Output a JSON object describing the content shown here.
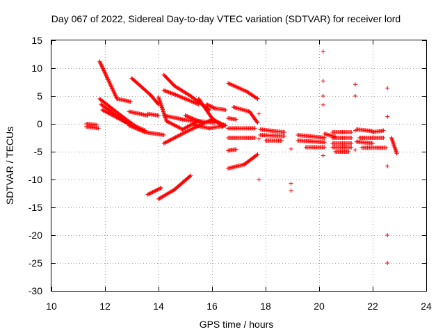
{
  "chart_data": {
    "type": "scatter",
    "title": "Day 067 of 2022, Sidereal Day-to-day VTEC variation (SDTVAR) for receiver lord",
    "xlabel": "GPS time / hours",
    "ylabel": "SDTVAR / TECUs",
    "xlim": [
      10,
      24
    ],
    "ylim": [
      -30,
      15
    ],
    "xticks": [
      10,
      12,
      14,
      16,
      18,
      20,
      22,
      24
    ],
    "yticks": [
      -30,
      -25,
      -20,
      -15,
      -10,
      -5,
      0,
      5,
      10,
      15
    ],
    "grid": true,
    "marker": "+",
    "color": "#ff0000",
    "segments": [
      {
        "x": [
          11.3,
          11.7
        ],
        "y": [
          0.0,
          -0.2
        ]
      },
      {
        "x": [
          11.3,
          11.75
        ],
        "y": [
          -0.5,
          -0.8
        ]
      },
      {
        "x": [
          11.8,
          12.45
        ],
        "y": [
          11.2,
          4.5
        ]
      },
      {
        "x": [
          12.45,
          12.95
        ],
        "y": [
          4.5,
          4.0
        ]
      },
      {
        "x": [
          11.8,
          12.6
        ],
        "y": [
          4.5,
          1.5
        ]
      },
      {
        "x": [
          12.6,
          13.3
        ],
        "y": [
          1.5,
          -1.0
        ]
      },
      {
        "x": [
          11.85,
          12.7
        ],
        "y": [
          3.5,
          0.5
        ]
      },
      {
        "x": [
          12.7,
          13.5
        ],
        "y": [
          0.5,
          -1.2
        ]
      },
      {
        "x": [
          11.9,
          12.5
        ],
        "y": [
          2.5,
          1.0
        ]
      },
      {
        "x": [
          12.5,
          12.9
        ],
        "y": [
          1.0,
          0.0
        ]
      },
      {
        "x": [
          12.9,
          13.6
        ],
        "y": [
          2.2,
          1.5
        ]
      },
      {
        "x": [
          13.6,
          14.0
        ],
        "y": [
          1.8,
          1.5
        ]
      },
      {
        "x": [
          13.0,
          13.7
        ],
        "y": [
          8.2,
          5.2
        ]
      },
      {
        "x": [
          13.7,
          14.0
        ],
        "y": [
          5.2,
          3.5
        ]
      },
      {
        "x": [
          12.9,
          13.5
        ],
        "y": [
          -0.3,
          -1.5
        ]
      },
      {
        "x": [
          13.5,
          14.2
        ],
        "y": [
          -1.5,
          -2.0
        ]
      },
      {
        "x": [
          14.0,
          14.3
        ],
        "y": [
          4.8,
          0.5
        ]
      },
      {
        "x": [
          14.3,
          14.9
        ],
        "y": [
          0.5,
          -1.0
        ]
      },
      {
        "x": [
          14.9,
          15.4
        ],
        "y": [
          -1.0,
          0.3
        ]
      },
      {
        "x": [
          14.2,
          14.6
        ],
        "y": [
          8.8,
          6.8
        ]
      },
      {
        "x": [
          14.6,
          15.2
        ],
        "y": [
          6.8,
          5.0
        ]
      },
      {
        "x": [
          15.2,
          15.9
        ],
        "y": [
          5.0,
          2.5
        ]
      },
      {
        "x": [
          14.2,
          14.6
        ],
        "y": [
          6.0,
          5.3
        ]
      },
      {
        "x": [
          14.6,
          15.5
        ],
        "y": [
          5.3,
          3.5
        ]
      },
      {
        "x": [
          14.2,
          14.9
        ],
        "y": [
          1.5,
          0.8
        ]
      },
      {
        "x": [
          14.9,
          15.6
        ],
        "y": [
          0.8,
          0.3
        ]
      },
      {
        "x": [
          14.2,
          15.0
        ],
        "y": [
          -3.5,
          -1.5
        ]
      },
      {
        "x": [
          15.0,
          16.0
        ],
        "y": [
          -1.5,
          0.8
        ]
      },
      {
        "x": [
          16.0,
          16.5
        ],
        "y": [
          0.8,
          -0.3
        ]
      },
      {
        "x": [
          15.0,
          15.5
        ],
        "y": [
          1.5,
          0.5
        ]
      },
      {
        "x": [
          15.5,
          16.1
        ],
        "y": [
          0.5,
          0.2
        ]
      },
      {
        "x": [
          15.5,
          16.0
        ],
        "y": [
          4.5,
          1.0
        ]
      },
      {
        "x": [
          16.0,
          16.4
        ],
        "y": [
          1.0,
          -0.5
        ]
      },
      {
        "x": [
          15.8,
          16.1
        ],
        "y": [
          3.5,
          2.8
        ]
      },
      {
        "x": [
          16.1,
          16.5
        ],
        "y": [
          2.8,
          2.5
        ]
      },
      {
        "x": [
          15.3,
          15.9
        ],
        "y": [
          -0.2,
          -0.8
        ]
      },
      {
        "x": [
          15.9,
          16.5
        ],
        "y": [
          -0.8,
          -0.3
        ]
      },
      {
        "x": [
          14.0,
          14.6
        ],
        "y": [
          -13.5,
          -11.8
        ]
      },
      {
        "x": [
          14.6,
          15.2
        ],
        "y": [
          -11.8,
          -9.3
        ]
      },
      {
        "x": [
          13.6,
          14.1
        ],
        "y": [
          -12.7,
          -11.5
        ]
      },
      {
        "x": [
          16.6,
          17.3
        ],
        "y": [
          7.3,
          5.8
        ]
      },
      {
        "x": [
          17.3,
          17.7
        ],
        "y": [
          5.8,
          4.5
        ]
      },
      {
        "x": [
          16.8,
          17.4
        ],
        "y": [
          3.0,
          2.2
        ]
      },
      {
        "x": [
          17.4,
          17.7
        ],
        "y": [
          2.2,
          0.2
        ]
      },
      {
        "x": [
          16.6,
          17.6
        ],
        "y": [
          -0.8,
          -0.8
        ]
      },
      {
        "x": [
          16.6,
          17.6
        ],
        "y": [
          -2.5,
          -2.5
        ]
      },
      {
        "x": [
          16.6,
          16.9
        ],
        "y": [
          -4.8,
          -4.6
        ]
      },
      {
        "x": [
          16.6,
          17.2
        ],
        "y": [
          -8.0,
          -7.3
        ]
      },
      {
        "x": [
          17.2,
          17.7
        ],
        "y": [
          -7.3,
          -5.5
        ]
      },
      {
        "x": [
          16.6,
          16.9
        ],
        "y": [
          1.0,
          0.8
        ]
      },
      {
        "x": [
          17.8,
          18.7
        ],
        "y": [
          -1.0,
          -1.5
        ]
      },
      {
        "x": [
          17.8,
          18.7
        ],
        "y": [
          -2.0,
          -2.2
        ]
      },
      {
        "x": [
          18.0,
          18.6
        ],
        "y": [
          -3.0,
          -3.0
        ]
      },
      {
        "x": [
          19.2,
          20.2
        ],
        "y": [
          -2.0,
          -2.5
        ]
      },
      {
        "x": [
          19.2,
          20.2
        ],
        "y": [
          -3.0,
          -3.3
        ]
      },
      {
        "x": [
          19.5,
          20.2
        ],
        "y": [
          -4.2,
          -4.2
        ]
      },
      {
        "x": [
          20.2,
          20.6
        ],
        "y": [
          -1.8,
          -2.3
        ]
      },
      {
        "x": [
          20.5,
          21.2
        ],
        "y": [
          -1.5,
          -1.5
        ]
      },
      {
        "x": [
          20.5,
          21.2
        ],
        "y": [
          -2.5,
          -2.5
        ]
      },
      {
        "x": [
          20.5,
          21.2
        ],
        "y": [
          -3.5,
          -3.5
        ]
      },
      {
        "x": [
          20.5,
          21.2
        ],
        "y": [
          -4.2,
          -4.2
        ]
      },
      {
        "x": [
          20.6,
          21.1
        ],
        "y": [
          -5.0,
          -5.0
        ]
      },
      {
        "x": [
          21.4,
          22.0
        ],
        "y": [
          -1.0,
          -1.3
        ]
      },
      {
        "x": [
          21.4,
          22.0
        ],
        "y": [
          -3.2,
          -3.5
        ]
      },
      {
        "x": [
          21.5,
          22.4
        ],
        "y": [
          -2.5,
          -2.5
        ]
      },
      {
        "x": [
          21.6,
          22.5
        ],
        "y": [
          -4.3,
          -4.3
        ]
      },
      {
        "x": [
          22.0,
          22.4
        ],
        "y": [
          -1.5,
          -1.2
        ]
      },
      {
        "x": [
          22.7,
          22.9
        ],
        "y": [
          -2.5,
          -5.3
        ]
      }
    ],
    "points": [
      {
        "x": 17.75,
        "y": 1.8
      },
      {
        "x": 17.75,
        "y": -2.7
      },
      {
        "x": 17.75,
        "y": -10.0
      },
      {
        "x": 18.95,
        "y": -4.5
      },
      {
        "x": 18.95,
        "y": -10.7
      },
      {
        "x": 18.95,
        "y": -12.0
      },
      {
        "x": 20.15,
        "y": 13.0
      },
      {
        "x": 20.15,
        "y": 7.7
      },
      {
        "x": 20.15,
        "y": 5.0
      },
      {
        "x": 20.15,
        "y": 3.4
      },
      {
        "x": 20.15,
        "y": -5.7
      },
      {
        "x": 21.35,
        "y": 7.1
      },
      {
        "x": 21.35,
        "y": 5.0
      },
      {
        "x": 21.35,
        "y": -1.2
      },
      {
        "x": 21.35,
        "y": -4.7
      },
      {
        "x": 22.55,
        "y": 6.4
      },
      {
        "x": 22.55,
        "y": 1.3
      },
      {
        "x": 22.55,
        "y": -7.6
      },
      {
        "x": 22.55,
        "y": -20.0
      },
      {
        "x": 22.55,
        "y": -25.0
      }
    ]
  }
}
